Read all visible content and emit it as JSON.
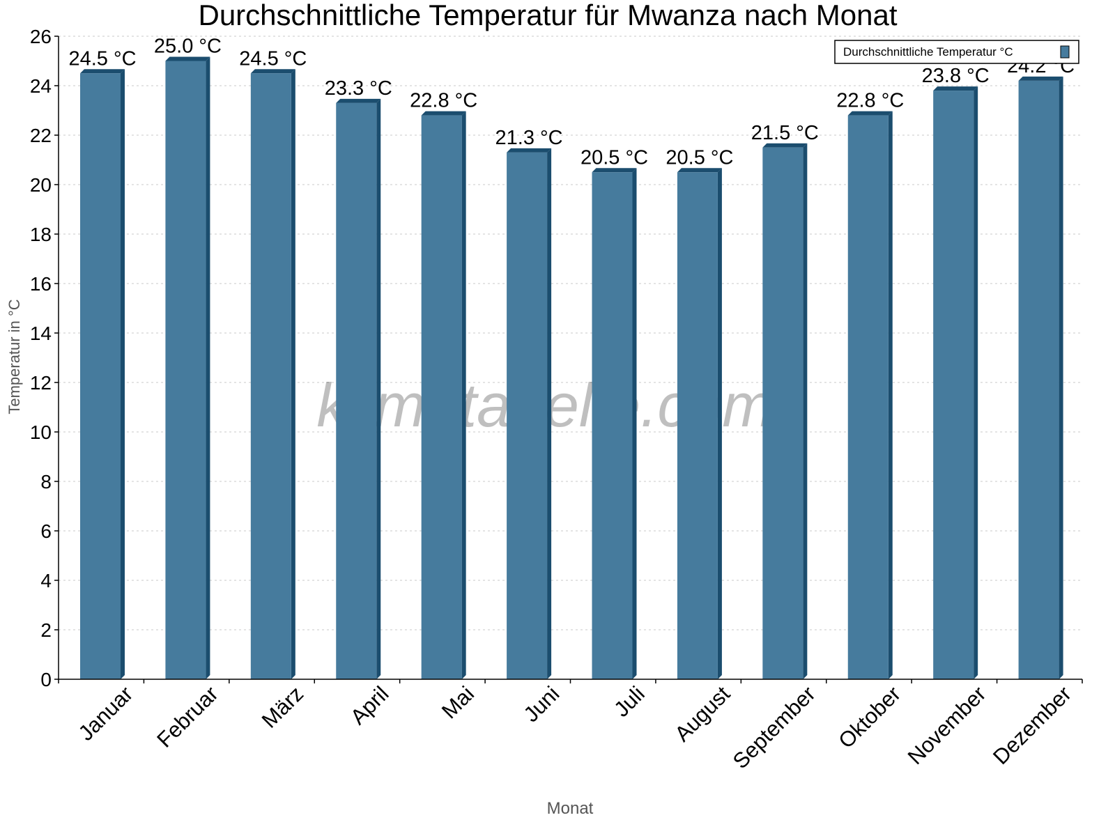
{
  "chart_data": {
    "type": "bar",
    "title": "Durchschnittliche Temperatur für Mwanza nach Monat",
    "xlabel": "Monat",
    "ylabel": "Temperatur in °C",
    "categories": [
      "Januar",
      "Februar",
      "März",
      "April",
      "Mai",
      "Juni",
      "Juli",
      "August",
      "September",
      "Oktober",
      "November",
      "Dezember"
    ],
    "series": [
      {
        "name": "Durchschnittliche Temperatur °C",
        "values": [
          24.5,
          25.0,
          24.5,
          23.3,
          22.8,
          21.3,
          20.5,
          20.5,
          21.5,
          22.8,
          23.8,
          24.2
        ],
        "data_labels": [
          "24.5 °C",
          "25.0 °C",
          "24.5 °C",
          "23.3 °C",
          "22.8 °C",
          "21.3 °C",
          "20.5 °C",
          "20.5 °C",
          "21.5 °C",
          "22.8 °C",
          "23.8 °C",
          "24.2 °C"
        ]
      }
    ],
    "ylim": [
      0,
      26
    ],
    "yticks": [
      0,
      2,
      4,
      6,
      8,
      10,
      12,
      14,
      16,
      18,
      20,
      22,
      24,
      26
    ],
    "grid": true,
    "legend_position": "top-right",
    "colors": {
      "bar": "#467b9d",
      "bar_side": "#1b4d6e"
    },
    "watermark": "klimatabelle.com"
  }
}
